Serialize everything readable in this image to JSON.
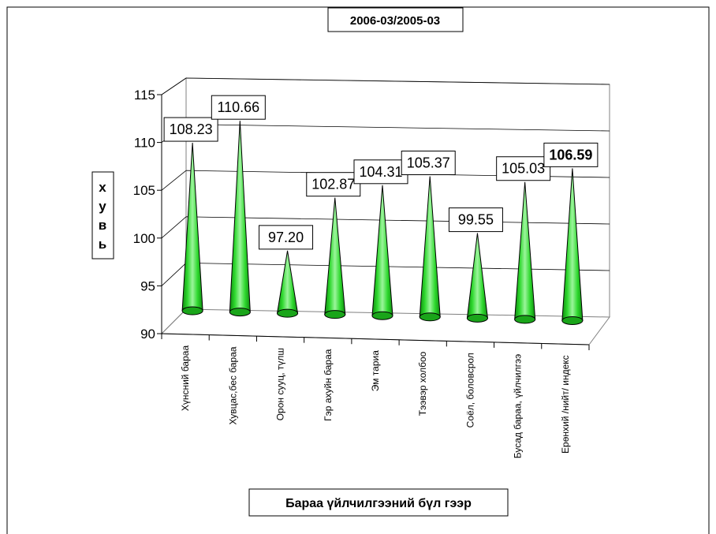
{
  "chart_data": {
    "type": "bar",
    "title": "2006-03/2005-03",
    "xlabel": "Бараа үйлчилгээний бүл гээр",
    "ylabel": "хувь",
    "ylim": [
      90,
      115
    ],
    "y_ticks": [
      90,
      95,
      100,
      105,
      110,
      115
    ],
    "grid": true,
    "legend": "none",
    "bar_shape": "cone",
    "bar_color": "#22dd22",
    "categories": [
      "Хүнсний бараа",
      "Хувцас,бес бараа",
      "Орон сууц, түлш",
      "Гэр ахуйн бараа",
      "Эм тариа",
      "Тээвэр холбоо",
      "Соёл, боловсрол",
      "Бусад бараа, үйлчилгээ",
      "Ерөнхий /нийт/ индекс"
    ],
    "values": [
      108.23,
      110.66,
      97.2,
      102.87,
      104.31,
      105.37,
      99.55,
      105.03,
      106.59
    ],
    "data_labels": [
      "108.23",
      "110.66",
      "97.20",
      "102.87",
      "104.31",
      "105.37",
      "99.55",
      "105.03",
      "106.59"
    ]
  }
}
